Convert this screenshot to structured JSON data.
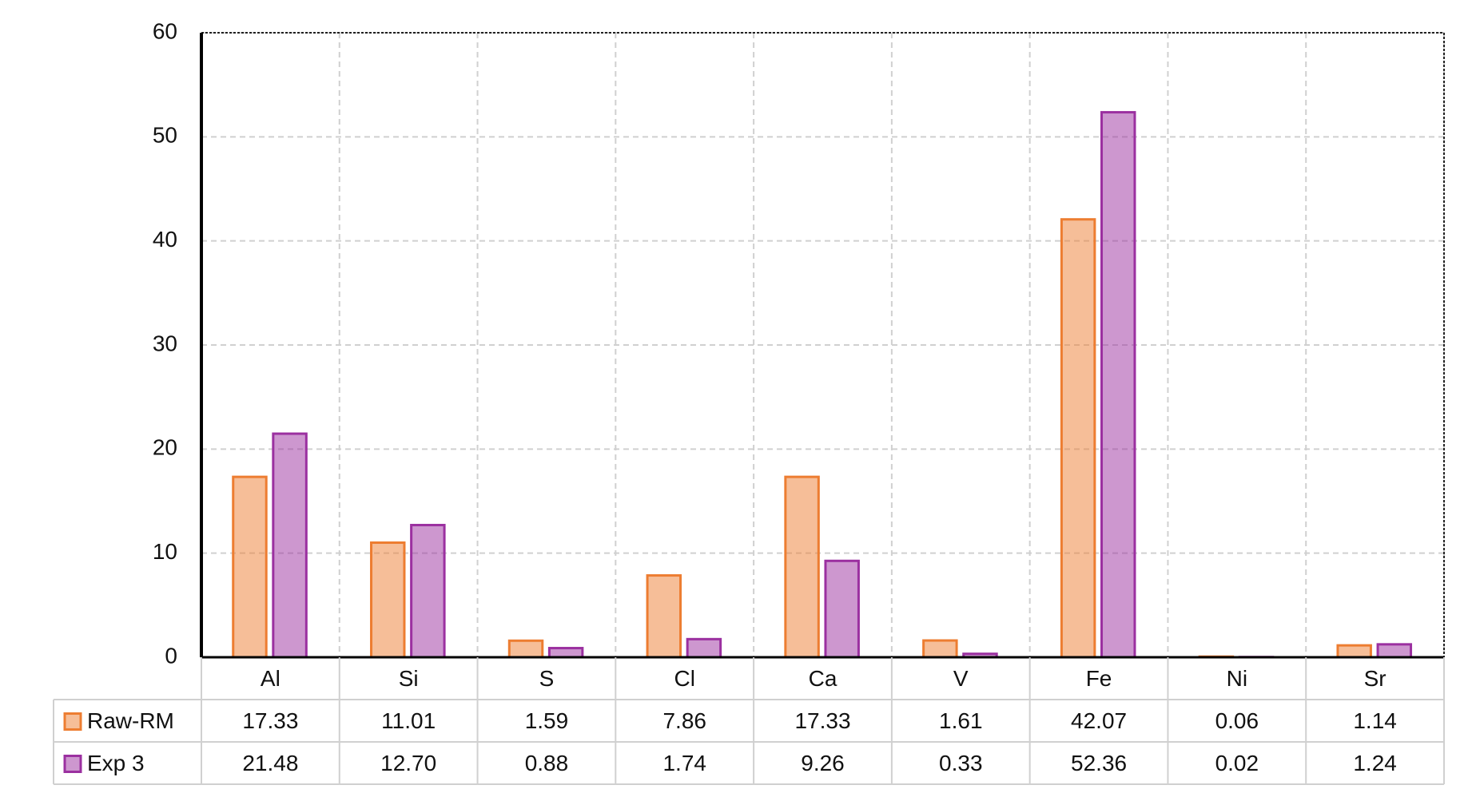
{
  "chart_data": {
    "type": "bar",
    "categories": [
      "Al",
      "Si",
      "S",
      "Cl",
      "Ca",
      "V",
      "Fe",
      "Ni",
      "Sr"
    ],
    "series": [
      {
        "name": "Raw-RM",
        "color": "#ed7d31",
        "values": [
          17.33,
          11.01,
          1.59,
          7.86,
          17.33,
          1.61,
          42.07,
          0.06,
          1.14
        ],
        "value_labels": [
          "17.33",
          "11.01",
          "1.59",
          "7.86",
          "17.33",
          "1.61",
          "42.07",
          "0.06",
          "1.14"
        ]
      },
      {
        "name": "Exp 3",
        "color": "#9b30a0",
        "values": [
          21.48,
          12.7,
          0.88,
          1.74,
          9.26,
          0.33,
          52.36,
          0.02,
          1.24
        ],
        "value_labels": [
          "21.48",
          "12.70",
          "0.88",
          "1.74",
          "9.26",
          "0.33",
          "52.36",
          "0.02",
          "1.24"
        ]
      }
    ],
    "ylim": [
      0,
      60
    ],
    "yticks": [
      0,
      10,
      20,
      30,
      40,
      50,
      60
    ],
    "grid": true,
    "data_table": true
  }
}
